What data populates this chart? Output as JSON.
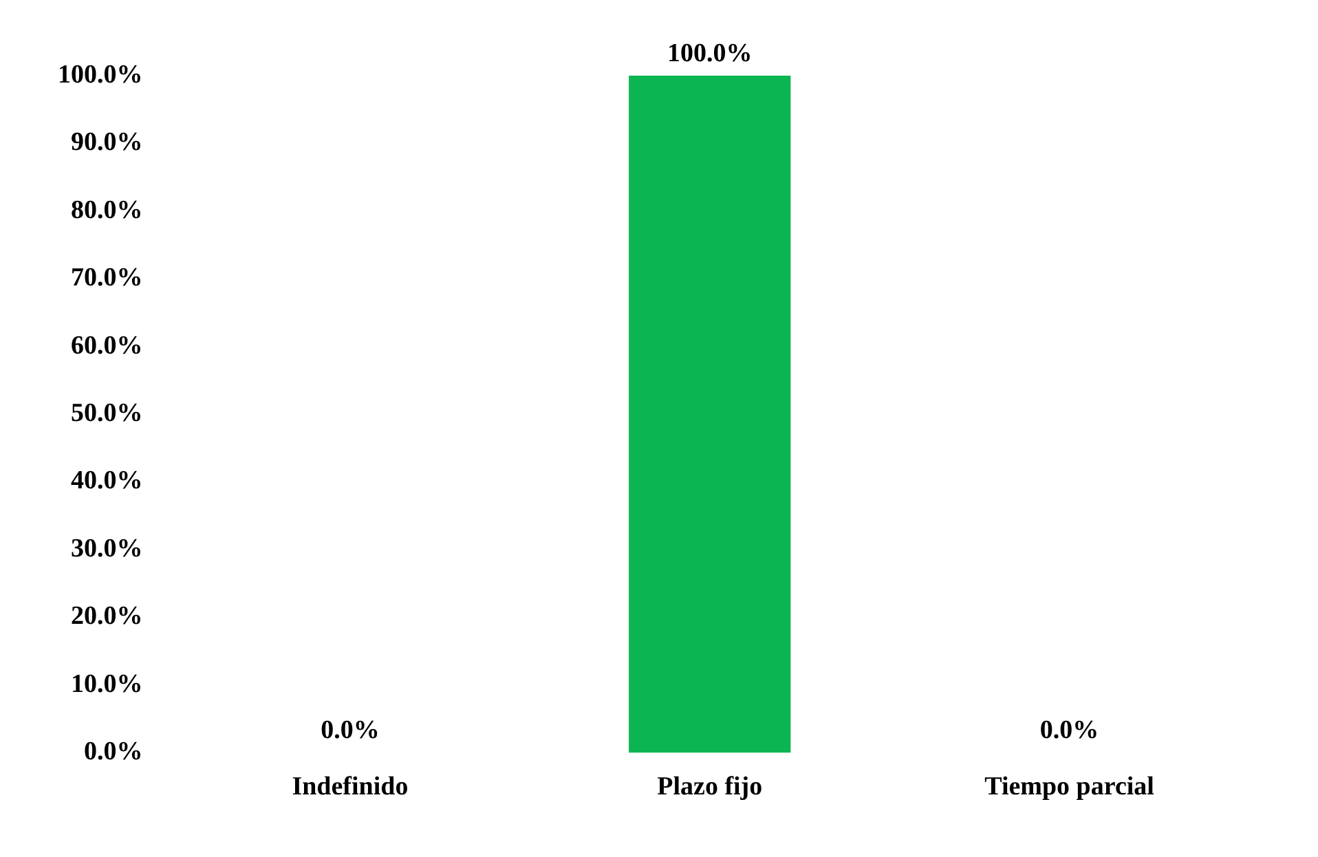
{
  "chart_data": {
    "type": "bar",
    "categories": [
      "Indefinido",
      "Plazo fijo",
      "Tiempo parcial"
    ],
    "values": [
      0,
      100,
      0
    ],
    "color": "#0bb551",
    "value_labels": [
      "0.0%",
      "100.0%",
      "0.0%"
    ],
    "ylim": [
      0,
      100
    ],
    "yticks": [
      {
        "value": 0,
        "label": "0.0%"
      },
      {
        "value": 10,
        "label": "10.0%"
      },
      {
        "value": 20,
        "label": "20.0%"
      },
      {
        "value": 30,
        "label": "30.0%"
      },
      {
        "value": 40,
        "label": "40.0%"
      },
      {
        "value": 50,
        "label": "50.0%"
      },
      {
        "value": 60,
        "label": "60.0%"
      },
      {
        "value": 70,
        "label": "70.0%"
      },
      {
        "value": 80,
        "label": "80.0%"
      },
      {
        "value": 90,
        "label": "90.0%"
      },
      {
        "value": 100,
        "label": "100.0%"
      }
    ],
    "grid": false,
    "legend": false
  }
}
